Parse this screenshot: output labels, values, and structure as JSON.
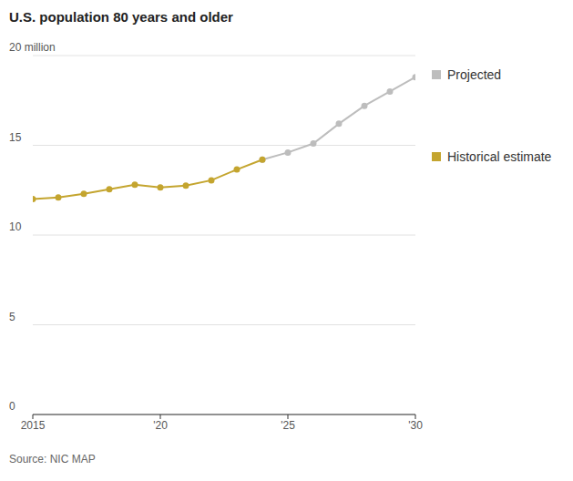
{
  "chart_data": {
    "type": "line",
    "title": "U.S. population 80 years and older",
    "source": "Source: NIC MAP",
    "x": [
      2015,
      2016,
      2017,
      2018,
      2019,
      2020,
      2021,
      2022,
      2023,
      2024,
      2025,
      2026,
      2027,
      2028,
      2029,
      2030
    ],
    "series": [
      {
        "name": "Projected",
        "color": "#bdbdbd",
        "marker": "circle",
        "values": [
          null,
          null,
          null,
          null,
          null,
          null,
          null,
          null,
          null,
          14.2,
          14.6,
          15.1,
          16.2,
          17.2,
          18.0,
          18.8
        ]
      },
      {
        "name": "Historical estimate",
        "color": "#c4a52f",
        "marker": "circle",
        "values": [
          12.0,
          12.1,
          12.3,
          12.55,
          12.8,
          12.65,
          12.75,
          13.05,
          13.65,
          14.2,
          null,
          null,
          null,
          null,
          null,
          null
        ]
      }
    ],
    "xlim": [
      2015,
      2030
    ],
    "xticks": [
      2015,
      {
        "value": 2020,
        "label": "'20"
      },
      {
        "value": 2025,
        "label": "'25"
      },
      {
        "value": 2030,
        "label": "'30"
      }
    ],
    "ylim": [
      0,
      20
    ],
    "yticks": [
      0,
      5,
      10,
      15,
      {
        "value": 20,
        "label": "20 million"
      }
    ],
    "grid": true,
    "legend": "right"
  }
}
